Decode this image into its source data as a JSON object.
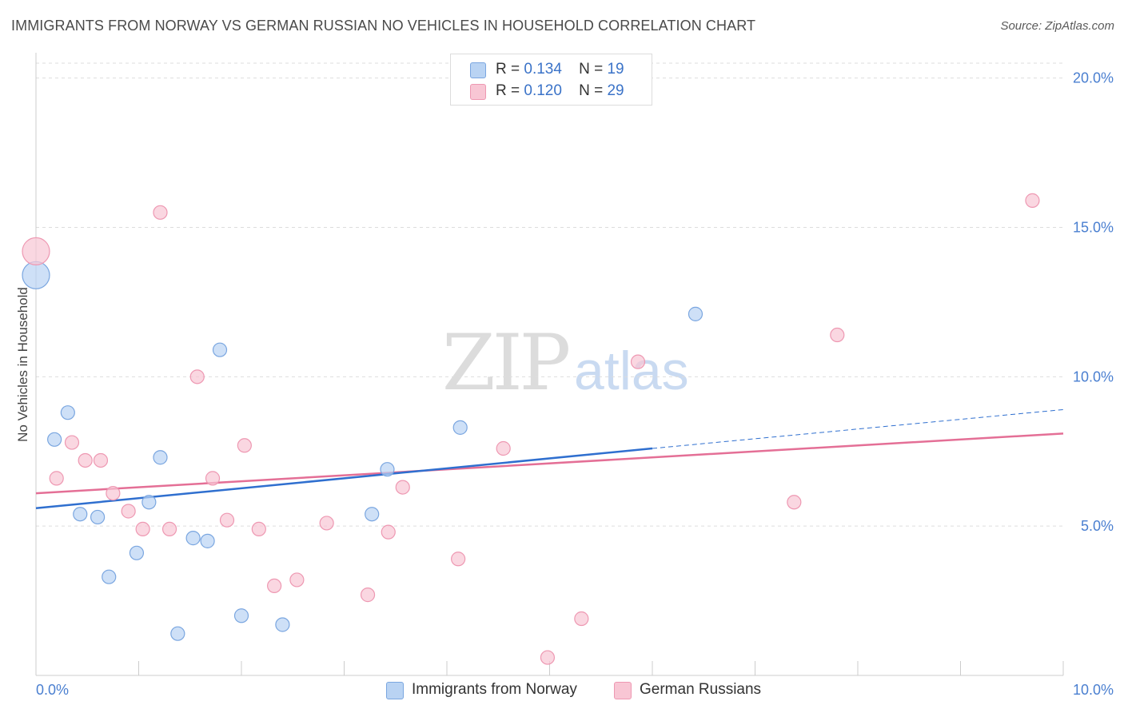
{
  "title": "IMMIGRANTS FROM NORWAY VS GERMAN RUSSIAN NO VEHICLES IN HOUSEHOLD CORRELATION CHART",
  "source": "Source: ZipAtlas.com",
  "watermark": {
    "zip": "ZIP",
    "atlas": "atlas"
  },
  "legend": {
    "rows": [
      {
        "r_label": "R =",
        "r_value": "0.134",
        "n_label": "N =",
        "n_value": "19"
      },
      {
        "r_label": "R =",
        "r_value": "0.120",
        "n_label": "N =",
        "n_value": "29"
      }
    ]
  },
  "bottom_legend": [
    "Immigrants from Norway",
    "German Russians"
  ],
  "colors": {
    "blue_fill": "#b9d3f3",
    "blue_stroke": "#7aa6e0",
    "blue_line": "#2f6fcf",
    "pink_fill": "#f8c6d4",
    "pink_stroke": "#ee98b2",
    "pink_line": "#e46f96",
    "grid": "#dddddd",
    "tick_text": "#4a7fd0"
  },
  "chart_data": {
    "type": "scatter",
    "ylabel": "No Vehicles in Household",
    "xlim": [
      0,
      10
    ],
    "ylim": [
      0,
      20.5
    ],
    "x_ticks": [
      "0.0%",
      "10.0%"
    ],
    "y_ticks": [
      {
        "value": 5,
        "label": "5.0%"
      },
      {
        "value": 10,
        "label": "10.0%"
      },
      {
        "value": 15,
        "label": "15.0%"
      },
      {
        "value": 20,
        "label": "20.0%"
      }
    ],
    "series": [
      {
        "name": "Immigrants from Norway",
        "color": "blue",
        "points": [
          {
            "x": 0.0,
            "y": 13.4,
            "big": true
          },
          {
            "x": 0.18,
            "y": 7.9
          },
          {
            "x": 0.31,
            "y": 8.8
          },
          {
            "x": 0.43,
            "y": 5.4
          },
          {
            "x": 0.6,
            "y": 5.3
          },
          {
            "x": 0.71,
            "y": 3.3
          },
          {
            "x": 0.98,
            "y": 4.1
          },
          {
            "x": 1.1,
            "y": 5.8
          },
          {
            "x": 1.21,
            "y": 7.3
          },
          {
            "x": 1.38,
            "y": 1.4
          },
          {
            "x": 1.53,
            "y": 4.6
          },
          {
            "x": 1.67,
            "y": 4.5
          },
          {
            "x": 1.79,
            "y": 10.9
          },
          {
            "x": 2.0,
            "y": 2.0
          },
          {
            "x": 2.4,
            "y": 1.7
          },
          {
            "x": 3.27,
            "y": 5.4
          },
          {
            "x": 3.42,
            "y": 6.9
          },
          {
            "x": 4.13,
            "y": 8.3
          },
          {
            "x": 6.42,
            "y": 12.1
          }
        ],
        "trend": {
          "x0": 0,
          "y0": 5.6,
          "x1": 6.0,
          "y1": 7.6,
          "dash_x1": 10.0,
          "dash_y1": 8.9
        }
      },
      {
        "name": "German Russians",
        "color": "pink",
        "points": [
          {
            "x": 0.0,
            "y": 14.2,
            "big": true
          },
          {
            "x": 0.2,
            "y": 6.6
          },
          {
            "x": 0.35,
            "y": 7.8
          },
          {
            "x": 0.48,
            "y": 7.2
          },
          {
            "x": 0.63,
            "y": 7.2
          },
          {
            "x": 0.75,
            "y": 6.1
          },
          {
            "x": 0.9,
            "y": 5.5
          },
          {
            "x": 1.04,
            "y": 4.9
          },
          {
            "x": 1.21,
            "y": 15.5
          },
          {
            "x": 1.3,
            "y": 4.9
          },
          {
            "x": 1.57,
            "y": 10.0
          },
          {
            "x": 1.72,
            "y": 6.6
          },
          {
            "x": 1.86,
            "y": 5.2
          },
          {
            "x": 2.03,
            "y": 7.7
          },
          {
            "x": 2.17,
            "y": 4.9
          },
          {
            "x": 2.32,
            "y": 3.0
          },
          {
            "x": 2.54,
            "y": 3.2
          },
          {
            "x": 2.83,
            "y": 5.1
          },
          {
            "x": 3.23,
            "y": 2.7
          },
          {
            "x": 3.43,
            "y": 4.8
          },
          {
            "x": 3.57,
            "y": 6.3
          },
          {
            "x": 4.11,
            "y": 3.9
          },
          {
            "x": 4.55,
            "y": 7.6
          },
          {
            "x": 4.98,
            "y": 0.6
          },
          {
            "x": 5.31,
            "y": 1.9
          },
          {
            "x": 5.86,
            "y": 10.5
          },
          {
            "x": 7.38,
            "y": 5.8
          },
          {
            "x": 7.8,
            "y": 11.4
          },
          {
            "x": 9.7,
            "y": 15.9
          }
        ],
        "trend": {
          "x0": 0,
          "y0": 6.1,
          "x1": 10.0,
          "y1": 8.1
        }
      }
    ]
  }
}
